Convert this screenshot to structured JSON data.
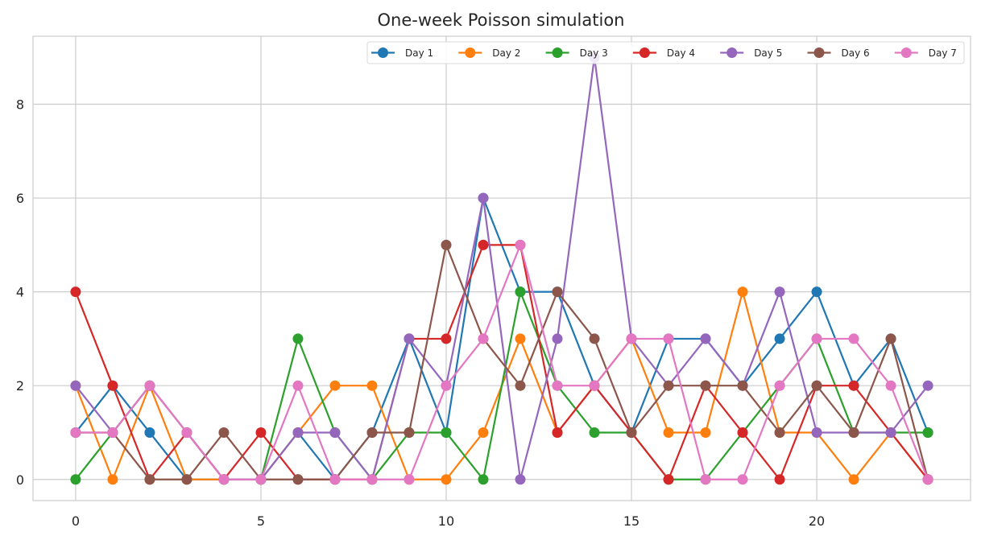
{
  "chart_data": {
    "type": "line",
    "title": "One-week Poisson simulation",
    "xlabel": "",
    "ylabel": "",
    "xlim": [
      -1.15,
      24.15
    ],
    "ylim": [
      -0.45,
      9.45
    ],
    "xticks": [
      0,
      5,
      10,
      15,
      20
    ],
    "yticks": [
      0,
      2,
      4,
      6,
      8
    ],
    "grid": true,
    "legend": {
      "placement": "top-right",
      "ncol": 7
    },
    "x": [
      0,
      1,
      2,
      3,
      4,
      5,
      6,
      7,
      8,
      9,
      10,
      11,
      12,
      13,
      14,
      15,
      16,
      17,
      18,
      19,
      20,
      21,
      22,
      23
    ],
    "series": [
      {
        "name": "Day 1",
        "color": "#1f77b4",
        "values": [
          1,
          2,
          1,
          0,
          0,
          0,
          1,
          0,
          1,
          3,
          1,
          6,
          4,
          4,
          2,
          1,
          3,
          3,
          2,
          3,
          4,
          2,
          3,
          1
        ]
      },
      {
        "name": "Day 2",
        "color": "#ff7f0e",
        "values": [
          2,
          0,
          2,
          0,
          0,
          0,
          1,
          2,
          2,
          0,
          0,
          1,
          3,
          1,
          2,
          3,
          1,
          1,
          4,
          1,
          1,
          0,
          1,
          0
        ]
      },
      {
        "name": "Day 3",
        "color": "#2ca02c",
        "values": [
          0,
          1,
          2,
          1,
          0,
          0,
          3,
          1,
          0,
          1,
          1,
          0,
          4,
          2,
          1,
          1,
          0,
          0,
          1,
          2,
          3,
          1,
          1,
          1
        ]
      },
      {
        "name": "Day 4",
        "color": "#d62728",
        "values": [
          4,
          2,
          0,
          1,
          0,
          1,
          0,
          0,
          0,
          3,
          3,
          5,
          5,
          1,
          2,
          1,
          0,
          2,
          1,
          0,
          2,
          2,
          1,
          0
        ]
      },
      {
        "name": "Day 5",
        "color": "#9467bd",
        "values": [
          2,
          1,
          2,
          1,
          0,
          0,
          1,
          1,
          0,
          3,
          2,
          6,
          0,
          3,
          9,
          3,
          2,
          3,
          2,
          4,
          1,
          1,
          1,
          2
        ]
      },
      {
        "name": "Day 6",
        "color": "#8c564b",
        "values": [
          1,
          1,
          0,
          0,
          1,
          0,
          0,
          0,
          1,
          1,
          5,
          3,
          2,
          4,
          3,
          1,
          2,
          2,
          2,
          1,
          2,
          1,
          3,
          0
        ]
      },
      {
        "name": "Day 7",
        "color": "#e377c2",
        "values": [
          1,
          1,
          2,
          1,
          0,
          0,
          2,
          0,
          0,
          0,
          2,
          3,
          5,
          2,
          2,
          3,
          3,
          0,
          0,
          2,
          3,
          3,
          2,
          0
        ]
      }
    ]
  }
}
